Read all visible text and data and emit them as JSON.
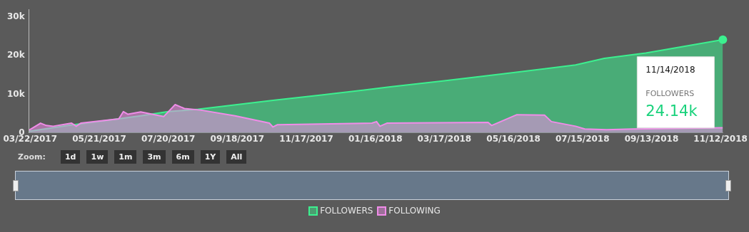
{
  "chart_data": {
    "type": "area",
    "series": [
      {
        "name": "FOLLOWERS",
        "color": "#3cf08f",
        "x": [
          "2017-03-21",
          "2017-04-24",
          "2017-05-25",
          "2017-06-26",
          "2017-07-20",
          "2017-08-15",
          "2017-10-19",
          "2017-11-30",
          "2018-01-29",
          "2018-03-17",
          "2018-05-07",
          "2018-07-09",
          "2018-08-03",
          "2018-09-08",
          "2018-11-14"
        ],
        "values": [
          400,
          1900,
          3100,
          4400,
          5500,
          6100,
          8400,
          9800,
          11900,
          13500,
          15300,
          17600,
          19300,
          20700,
          24140
        ]
      },
      {
        "name": "FOLLOWING",
        "color": "#f08ce8",
        "x": [
          "2017-03-21",
          "2017-03-31",
          "2017-04-05",
          "2017-04-11",
          "2017-04-27",
          "2017-05-01",
          "2017-05-05",
          "2017-06-07",
          "2017-06-11",
          "2017-06-15",
          "2017-06-26",
          "2017-07-16",
          "2017-07-26",
          "2017-08-03",
          "2017-08-17",
          "2017-09-16",
          "2017-10-16",
          "2017-10-19",
          "2017-10-23",
          "2018-01-13",
          "2018-01-17",
          "2018-01-20",
          "2018-01-26",
          "2018-04-24",
          "2018-04-27",
          "2018-05-19",
          "2018-06-12",
          "2018-06-18",
          "2018-07-09",
          "2018-07-17",
          "2018-08-05",
          "2018-08-28",
          "2018-11-14"
        ],
        "values": [
          700,
          2500,
          1900,
          1700,
          2500,
          1700,
          2500,
          3600,
          5500,
          4800,
          5400,
          4200,
          7300,
          6300,
          5900,
          4400,
          2500,
          1500,
          2100,
          2500,
          2900,
          1700,
          2500,
          2700,
          1900,
          4700,
          4600,
          2900,
          1700,
          1000,
          800,
          1000,
          1300
        ]
      }
    ],
    "xlim": [
      "2017-03-21",
      "2018-11-14"
    ],
    "xticks": [
      {
        "value": "2017-03-22",
        "label": "03/22/2017"
      },
      {
        "value": "2017-05-21",
        "label": "05/21/2017"
      },
      {
        "value": "2017-07-20",
        "label": "07/20/2017"
      },
      {
        "value": "2017-09-18",
        "label": "09/18/2017"
      },
      {
        "value": "2017-11-17",
        "label": "11/17/2017"
      },
      {
        "value": "2018-01-16",
        "label": "01/16/2018"
      },
      {
        "value": "2018-03-17",
        "label": "03/17/2018"
      },
      {
        "value": "2018-05-16",
        "label": "05/16/2018"
      },
      {
        "value": "2018-07-15",
        "label": "07/15/2018"
      },
      {
        "value": "2018-09-13",
        "label": "09/13/2018"
      },
      {
        "value": "2018-11-12",
        "label": "11/12/2018"
      }
    ],
    "ylim": [
      0,
      32000
    ],
    "yticks": [
      {
        "value": 0,
        "label": "0"
      },
      {
        "value": 10000,
        "label": "10k"
      },
      {
        "value": 20000,
        "label": "20k"
      },
      {
        "value": 30000,
        "label": "30k"
      }
    ],
    "grid": false,
    "legend": "bottom",
    "annotations": [
      "11/14/2018",
      "FOLLOWERS",
      "24.14k",
      "Zoom:",
      "1d",
      "1w",
      "1m",
      "3m",
      "6m",
      "1Y",
      "All"
    ]
  }
}
